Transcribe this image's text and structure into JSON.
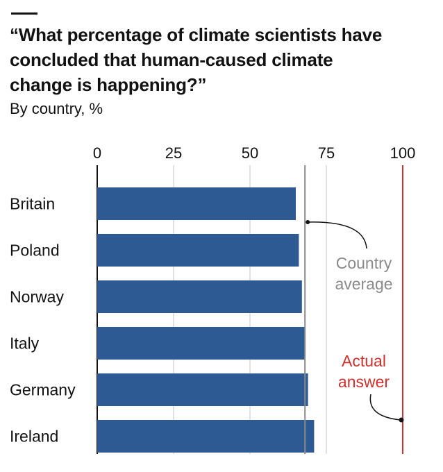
{
  "header": {
    "title": "“What percentage of climate scientists have concluded that human-caused climate change is happening?”",
    "subtitle": "By country, %"
  },
  "colors": {
    "bar": "#2e5a94",
    "grid": "#d8d8d8",
    "average_line": "#8a8a8a",
    "actual_line": "#d0312d",
    "text": "#121212"
  },
  "chart_data": {
    "type": "bar",
    "orientation": "horizontal",
    "title": "“What percentage of climate scientists have concluded that human-caused climate change is happening?”",
    "subtitle": "By country, %",
    "categories": [
      "Britain",
      "Poland",
      "Norway",
      "Italy",
      "Germany",
      "Ireland"
    ],
    "values": [
      65,
      66,
      67,
      68,
      69,
      71
    ],
    "xlim": [
      0,
      100
    ],
    "xticks": [
      "0",
      "25",
      "50",
      "75",
      "100"
    ],
    "xtick_values": [
      0,
      25,
      50,
      75,
      100
    ],
    "grid": true,
    "reference_lines": [
      {
        "name": "country-average",
        "value": 68,
        "label_lines": [
          "Country",
          "average"
        ]
      },
      {
        "name": "actual-answer",
        "value": 100,
        "label_lines": [
          "Actual",
          "answer"
        ]
      }
    ]
  }
}
